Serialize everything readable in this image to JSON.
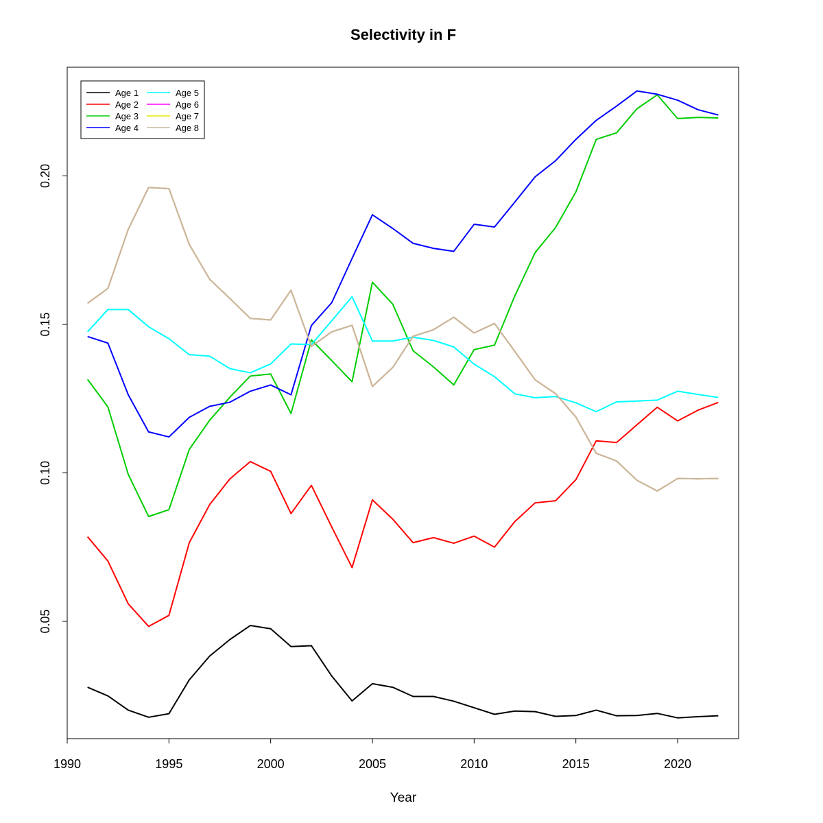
{
  "chart_data": {
    "type": "line",
    "title": "Selectivity in F",
    "xlabel": "Year",
    "ylabel": "",
    "xlim": [
      1990,
      2023
    ],
    "ylim": [
      0.0105,
      0.2366
    ],
    "xticks": [
      1990,
      1995,
      2000,
      2005,
      2010,
      2015,
      2020
    ],
    "yticks": [
      0.05,
      0.1,
      0.15,
      0.2
    ],
    "ytick_labels": [
      "0.05",
      "0.10",
      "0.15",
      "0.20"
    ],
    "grid": false,
    "legend_position": "top-left",
    "x": [
      1991,
      1992,
      1993,
      1994,
      1995,
      1996,
      1997,
      1998,
      1999,
      2000,
      2001,
      2002,
      2003,
      2004,
      2005,
      2006,
      2007,
      2008,
      2009,
      2010,
      2011,
      2012,
      2013,
      2014,
      2015,
      2016,
      2017,
      2018,
      2019,
      2020,
      2021,
      2022
    ],
    "series": [
      {
        "name": "Age 1",
        "color": "#000000",
        "values": [
          0.0278,
          0.0249,
          0.0201,
          0.0177,
          0.0189,
          0.0303,
          0.0383,
          0.0439,
          0.0486,
          0.0475,
          0.0415,
          0.0418,
          0.0316,
          0.0232,
          0.029,
          0.0278,
          0.0247,
          0.0247,
          0.0231,
          0.0209,
          0.0187,
          0.0198,
          0.0196,
          0.018,
          0.0183,
          0.0201,
          0.0182,
          0.0183,
          0.019,
          0.0175,
          0.0179,
          0.0182
        ]
      },
      {
        "name": "Age 2",
        "color": "#ff0000",
        "values": [
          0.0785,
          0.0703,
          0.0559,
          0.0483,
          0.052,
          0.0765,
          0.0893,
          0.098,
          0.1038,
          0.1005,
          0.0863,
          0.0958,
          0.0818,
          0.0681,
          0.0909,
          0.0844,
          0.0765,
          0.0782,
          0.0763,
          0.0787,
          0.075,
          0.0836,
          0.0899,
          0.0906,
          0.0977,
          0.1108,
          0.1102,
          0.1162,
          0.1221,
          0.1175,
          0.1211,
          0.1237
        ]
      },
      {
        "name": "Age 3",
        "color": "#00cd00",
        "values": [
          0.1315,
          0.1222,
          0.0995,
          0.0853,
          0.0876,
          0.1079,
          0.1177,
          0.1255,
          0.1326,
          0.1333,
          0.12,
          0.1448,
          0.1378,
          0.1307,
          0.1642,
          0.1568,
          0.1411,
          0.1357,
          0.1296,
          0.1415,
          0.143,
          0.1596,
          0.1742,
          0.1826,
          0.1946,
          0.2123,
          0.2145,
          0.2226,
          0.2273,
          0.2193,
          0.2197,
          0.2195
        ]
      },
      {
        "name": "Age 4",
        "color": "#0000ff",
        "values": [
          0.1459,
          0.1437,
          0.1263,
          0.1138,
          0.1121,
          0.1187,
          0.1224,
          0.1238,
          0.1275,
          0.1296,
          0.1263,
          0.1496,
          0.1573,
          0.1722,
          0.1869,
          0.1823,
          0.1773,
          0.1756,
          0.1746,
          0.1837,
          0.1828,
          0.1912,
          0.1997,
          0.2051,
          0.2123,
          0.2187,
          0.2235,
          0.2286,
          0.2275,
          0.2255,
          0.2223,
          0.2205
        ]
      },
      {
        "name": "Age 5",
        "color": "#00ffff",
        "values": [
          0.1475,
          0.155,
          0.155,
          0.1492,
          0.1452,
          0.1398,
          0.1393,
          0.1351,
          0.1337,
          0.1367,
          0.1434,
          0.1432,
          0.1512,
          0.1593,
          0.1444,
          0.1444,
          0.1457,
          0.1446,
          0.1424,
          0.1366,
          0.1324,
          0.1266,
          0.1253,
          0.1257,
          0.1236,
          0.1206,
          0.1239,
          0.1242,
          0.1245,
          0.1275,
          0.1264,
          0.1254
        ]
      },
      {
        "name": "Age 6",
        "color": "#ff00ff",
        "values": [
          0.1571,
          0.1621,
          0.182,
          0.1961,
          0.1957,
          0.1769,
          0.1652,
          0.1587,
          0.152,
          0.1515,
          0.1615,
          0.1426,
          0.1475,
          0.1497,
          0.1291,
          0.1355,
          0.146,
          0.1482,
          0.1524,
          0.1471,
          0.1503,
          0.1409,
          0.1313,
          0.1267,
          0.1188,
          0.1066,
          0.104,
          0.0975,
          0.0939,
          0.0981,
          0.098,
          0.0981
        ]
      },
      {
        "name": "Age 7",
        "color": "#e6e600",
        "values": [
          0.1571,
          0.1621,
          0.182,
          0.1961,
          0.1957,
          0.1769,
          0.1652,
          0.1587,
          0.152,
          0.1515,
          0.1615,
          0.1426,
          0.1475,
          0.1497,
          0.1291,
          0.1355,
          0.146,
          0.1482,
          0.1524,
          0.1471,
          0.1503,
          0.1409,
          0.1313,
          0.1267,
          0.1188,
          0.1066,
          0.104,
          0.0975,
          0.0939,
          0.0981,
          0.098,
          0.0981
        ]
      },
      {
        "name": "Age 8",
        "color": "#c8b89f",
        "values": [
          0.1571,
          0.1621,
          0.182,
          0.1961,
          0.1957,
          0.1769,
          0.1652,
          0.1587,
          0.152,
          0.1515,
          0.1615,
          0.1426,
          0.1475,
          0.1497,
          0.1291,
          0.1355,
          0.146,
          0.1482,
          0.1524,
          0.1471,
          0.1503,
          0.1409,
          0.1313,
          0.1267,
          0.1188,
          0.1066,
          0.104,
          0.0975,
          0.0939,
          0.0981,
          0.098,
          0.0981
        ]
      }
    ]
  }
}
